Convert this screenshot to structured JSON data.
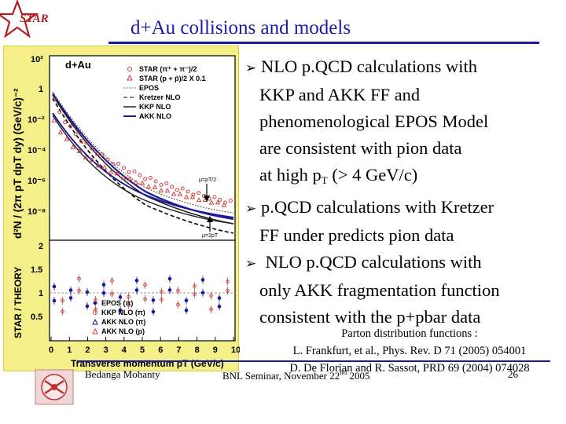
{
  "header": {
    "logo_text": "STAR",
    "title": "d+Au collisions and models"
  },
  "figure": {
    "panel_label": "d+Au",
    "top_ylabel": "d²N / (2π pT dpT dy) (GeV/c)⁻²",
    "bottom_ylabel": "STAR / THEORY",
    "xlabel": "Transverse momentum pT (GeV/c)",
    "top_legend": [
      {
        "marker": "circle-open",
        "text": "STAR (π⁺ + π⁻)/2"
      },
      {
        "marker": "triangle-open",
        "text": "STAR (p + p̄)/2 X 0.1"
      },
      {
        "line": "dotted",
        "text": "EPOS"
      },
      {
        "line": "dash",
        "text": "Kretzer NLO"
      },
      {
        "line": "dark-solid",
        "text": "KKP NLO"
      },
      {
        "line": "blue-solid",
        "text": "AKK NLO"
      }
    ],
    "bottom_legend": [
      {
        "marker": "diamond-filled",
        "text": "EPOS (π)"
      },
      {
        "marker": "circle-open",
        "text": "KKP NLO (π)"
      },
      {
        "marker": "triangle-open",
        "text": "AKK NLO (π)"
      },
      {
        "marker": "triangle-open",
        "text": "AKK NLO (p)"
      }
    ],
    "annotations": [
      "μ=pT/2",
      "μ=2pT"
    ],
    "x_ticks": [
      "0",
      "1",
      "2",
      "3",
      "4",
      "5",
      "6",
      "7",
      "8",
      "9",
      "10"
    ],
    "y_ticks_top": [
      "10²",
      "1",
      "10⁻²",
      "10⁻⁴",
      "10⁻⁶",
      "10⁻⁸"
    ],
    "y_ticks_bottom": [
      "0.5",
      "1",
      "1.5",
      "2"
    ]
  },
  "bullets": [
    {
      "lines": [
        "NLO p.QCD calculations with",
        "KKP and AKK FF and",
        "phenomenological EPOS Model",
        "are consistent  with pion data",
        "at high p"
      ],
      "subscript": "T",
      "tail": "  (> 4 GeV/c)"
    },
    {
      "lines": [
        "p.QCD calculations with Kretzer",
        "FF under predicts pion data"
      ]
    },
    {
      "lines": [
        " NLO p.QCD calculations with",
        " only AKK fragmentation function",
        "consistent with the p+pbar data"
      ]
    }
  ],
  "references": {
    "heading": "Parton distribution functions :",
    "ref1": "L. Frankfurt, et al., Phys. Rev. D 71 (2005) 054001",
    "ref2": "D. De Florian and R. Sassot, PRD 69 (2004) 074028"
  },
  "footer": {
    "author": "Bedanga Mohanty",
    "seminar_prefix": "BNL Seminar, November 22",
    "seminar_sup": "nd",
    "seminar_suffix": " 2005",
    "page": "26"
  },
  "colors": {
    "title": "#1a1aa8",
    "figure_bg": "#f5ef8a",
    "rule": "#1a1a9a"
  }
}
